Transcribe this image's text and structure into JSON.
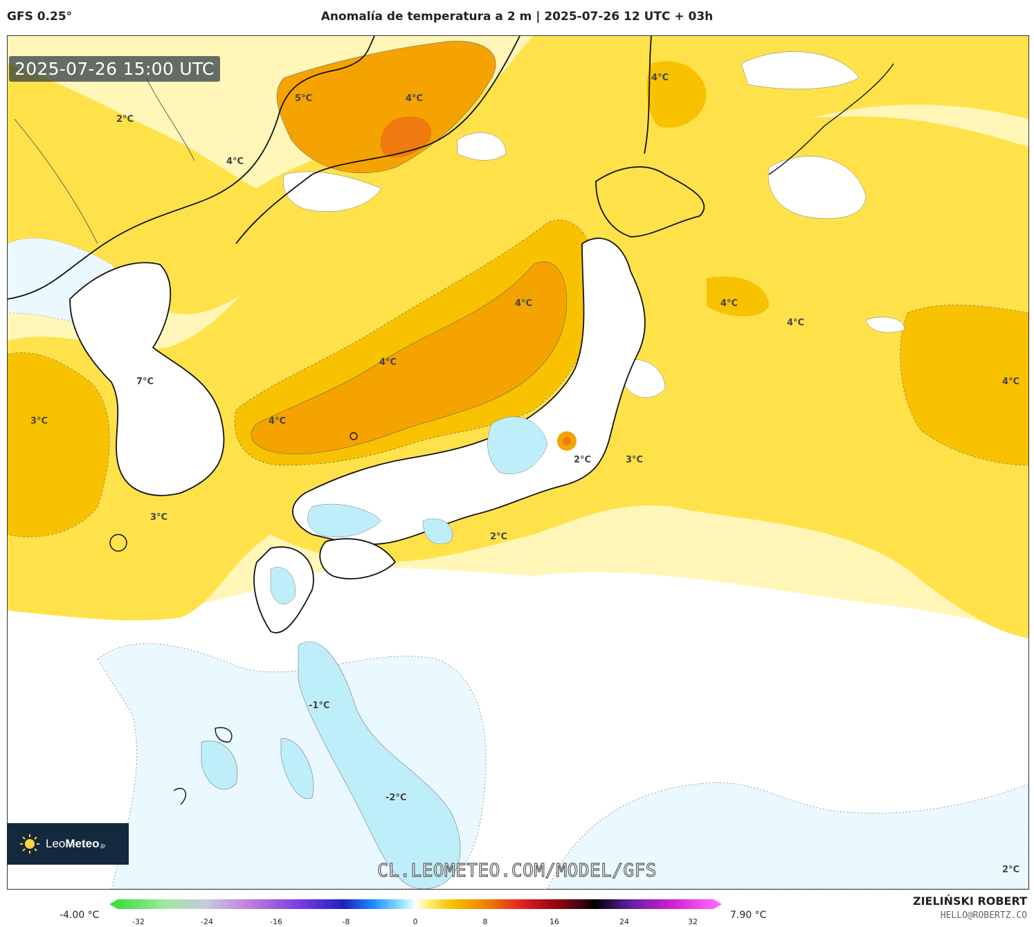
{
  "header": {
    "model": "GFS 0.25°",
    "title": "Anomalía de temperatura a 2 m | 2025-07-26 12 UTC + 03h"
  },
  "map": {
    "valid_time": "2025-07-26 15:00 UTC",
    "region": "Japan / Korea / East Asia",
    "contour_labels": [
      "2°C",
      "5°C",
      "4°C",
      "4°C",
      "4°C",
      "4°C",
      "4°C",
      "4°C",
      "4°C",
      "4°C",
      "7°C",
      "3°C",
      "4°C",
      "3°C",
      "2°C",
      "3°C",
      "2°C",
      "-1°C",
      "-2°C",
      "2°C"
    ],
    "colors": {
      "white": "#ffffff",
      "pale_yellow": "#fff6b8",
      "yellow": "#ffe24a",
      "dark_yellow": "#f8c200",
      "orange": "#f5a300",
      "dark_orange": "#ef7b10",
      "pale_blue": "#eaf8ff",
      "light_blue": "#bfeefb",
      "blue": "#8fdcf5"
    }
  },
  "logo": {
    "name_light": "Leo",
    "name_bold": "Meteo",
    "suffix": ".jp"
  },
  "watermark": "CL.LEOMETEO.COM/MODEL/GFS",
  "scale": {
    "min_label": "-4.00 °C",
    "max_label": "7.90 °C",
    "ticks": [
      "-32",
      "-24",
      "-16",
      "-8",
      "0",
      "8",
      "16",
      "24",
      "32"
    ]
  },
  "credit": {
    "author": "ZIELIŃSKI ROBERT",
    "email": "HELLO@ROBERTZ.CO"
  }
}
